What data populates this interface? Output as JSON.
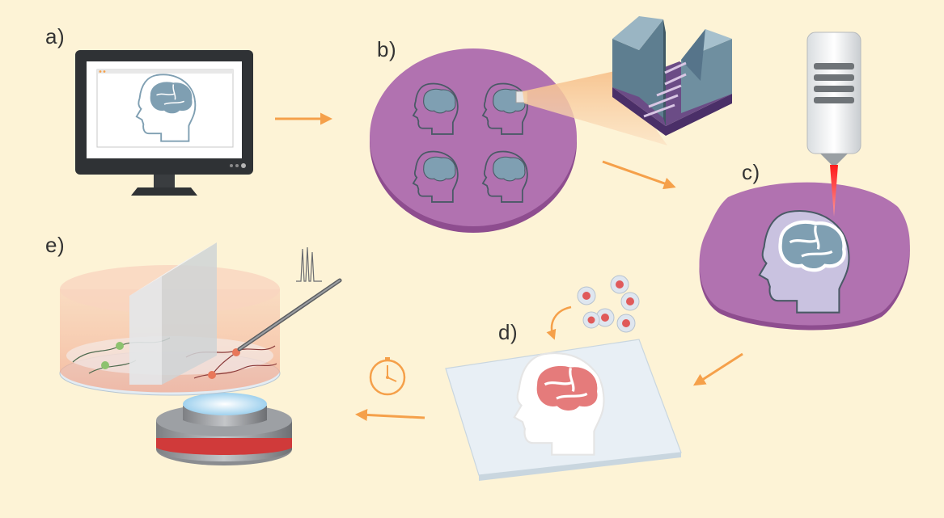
{
  "panels": {
    "a": {
      "label": "a)"
    },
    "b": {
      "label": "b)"
    },
    "c": {
      "label": "c)"
    },
    "d": {
      "label": "d)"
    },
    "e": {
      "label": "e)"
    }
  },
  "colors": {
    "background": "#fdf3d6",
    "arrow": "#f5a04a",
    "wafer": "#b172b0",
    "brain_blue": "#7f9fb2",
    "laser": "#e53935",
    "cell_red": "#e05a5a",
    "neuron_green": "#8dc26f"
  }
}
